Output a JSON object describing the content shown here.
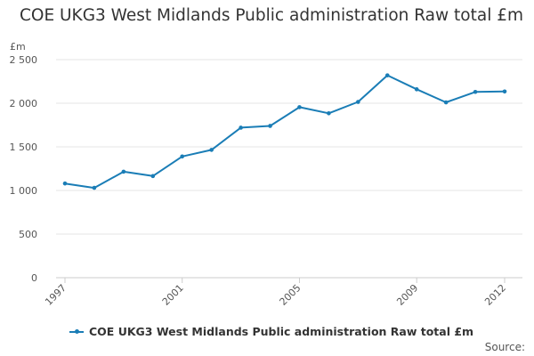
{
  "chart_data": {
    "type": "line",
    "title": "COE UKG3 West Midlands Public administration Raw total £m",
    "ylabel": "£m",
    "xlabel": "",
    "ylim": [
      0,
      2500
    ],
    "xlim": [
      1997,
      2012
    ],
    "yticks": [
      0,
      500,
      1000,
      1500,
      2000,
      2500
    ],
    "ytick_labels": [
      "0",
      "500",
      "1 000",
      "1 500",
      "2 000",
      "2 500"
    ],
    "xticks": [
      1997,
      2001,
      2005,
      2009,
      2012
    ],
    "xtick_labels": [
      "1997",
      "2001",
      "2005",
      "2009",
      "2012"
    ],
    "grid": true,
    "legend_position": "bottom",
    "series": [
      {
        "name": "COE UKG3 West Midlands Public administration Raw total £m",
        "color": "#1a7db6",
        "x": [
          1997,
          1998,
          1999,
          2000,
          2001,
          2002,
          2003,
          2004,
          2005,
          2006,
          2007,
          2008,
          2009,
          2010,
          2011,
          2012
        ],
        "values": [
          1080,
          1030,
          1215,
          1165,
          1390,
          1465,
          1720,
          1740,
          1955,
          1885,
          2015,
          2320,
          2160,
          2010,
          2130,
          2135
        ]
      }
    ]
  },
  "source_label": "Source:"
}
